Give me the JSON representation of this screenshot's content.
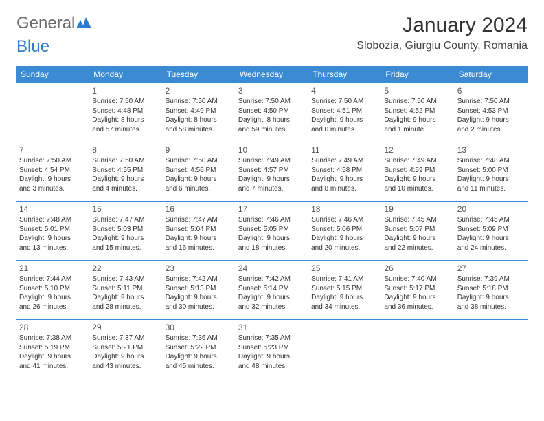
{
  "brand": {
    "part1": "General",
    "part2": "Blue"
  },
  "title": "January 2024",
  "location": "Slobozia, Giurgiu County, Romania",
  "colors": {
    "header_bg": "#3b8bd4",
    "header_text": "#ffffff",
    "border": "#3b8bd4",
    "brand_gray": "#6b6b6b",
    "brand_blue": "#2e7cd1"
  },
  "days_of_week": [
    "Sunday",
    "Monday",
    "Tuesday",
    "Wednesday",
    "Thursday",
    "Friday",
    "Saturday"
  ],
  "weeks": [
    [
      null,
      {
        "n": "1",
        "sunrise": "Sunrise: 7:50 AM",
        "sunset": "Sunset: 4:48 PM",
        "day1": "Daylight: 8 hours",
        "day2": "and 57 minutes."
      },
      {
        "n": "2",
        "sunrise": "Sunrise: 7:50 AM",
        "sunset": "Sunset: 4:49 PM",
        "day1": "Daylight: 8 hours",
        "day2": "and 58 minutes."
      },
      {
        "n": "3",
        "sunrise": "Sunrise: 7:50 AM",
        "sunset": "Sunset: 4:50 PM",
        "day1": "Daylight: 8 hours",
        "day2": "and 59 minutes."
      },
      {
        "n": "4",
        "sunrise": "Sunrise: 7:50 AM",
        "sunset": "Sunset: 4:51 PM",
        "day1": "Daylight: 9 hours",
        "day2": "and 0 minutes."
      },
      {
        "n": "5",
        "sunrise": "Sunrise: 7:50 AM",
        "sunset": "Sunset: 4:52 PM",
        "day1": "Daylight: 9 hours",
        "day2": "and 1 minute."
      },
      {
        "n": "6",
        "sunrise": "Sunrise: 7:50 AM",
        "sunset": "Sunset: 4:53 PM",
        "day1": "Daylight: 9 hours",
        "day2": "and 2 minutes."
      }
    ],
    [
      {
        "n": "7",
        "sunrise": "Sunrise: 7:50 AM",
        "sunset": "Sunset: 4:54 PM",
        "day1": "Daylight: 9 hours",
        "day2": "and 3 minutes."
      },
      {
        "n": "8",
        "sunrise": "Sunrise: 7:50 AM",
        "sunset": "Sunset: 4:55 PM",
        "day1": "Daylight: 9 hours",
        "day2": "and 4 minutes."
      },
      {
        "n": "9",
        "sunrise": "Sunrise: 7:50 AM",
        "sunset": "Sunset: 4:56 PM",
        "day1": "Daylight: 9 hours",
        "day2": "and 6 minutes."
      },
      {
        "n": "10",
        "sunrise": "Sunrise: 7:49 AM",
        "sunset": "Sunset: 4:57 PM",
        "day1": "Daylight: 9 hours",
        "day2": "and 7 minutes."
      },
      {
        "n": "11",
        "sunrise": "Sunrise: 7:49 AM",
        "sunset": "Sunset: 4:58 PM",
        "day1": "Daylight: 9 hours",
        "day2": "and 8 minutes."
      },
      {
        "n": "12",
        "sunrise": "Sunrise: 7:49 AM",
        "sunset": "Sunset: 4:59 PM",
        "day1": "Daylight: 9 hours",
        "day2": "and 10 minutes."
      },
      {
        "n": "13",
        "sunrise": "Sunrise: 7:48 AM",
        "sunset": "Sunset: 5:00 PM",
        "day1": "Daylight: 9 hours",
        "day2": "and 11 minutes."
      }
    ],
    [
      {
        "n": "14",
        "sunrise": "Sunrise: 7:48 AM",
        "sunset": "Sunset: 5:01 PM",
        "day1": "Daylight: 9 hours",
        "day2": "and 13 minutes."
      },
      {
        "n": "15",
        "sunrise": "Sunrise: 7:47 AM",
        "sunset": "Sunset: 5:03 PM",
        "day1": "Daylight: 9 hours",
        "day2": "and 15 minutes."
      },
      {
        "n": "16",
        "sunrise": "Sunrise: 7:47 AM",
        "sunset": "Sunset: 5:04 PM",
        "day1": "Daylight: 9 hours",
        "day2": "and 16 minutes."
      },
      {
        "n": "17",
        "sunrise": "Sunrise: 7:46 AM",
        "sunset": "Sunset: 5:05 PM",
        "day1": "Daylight: 9 hours",
        "day2": "and 18 minutes."
      },
      {
        "n": "18",
        "sunrise": "Sunrise: 7:46 AM",
        "sunset": "Sunset: 5:06 PM",
        "day1": "Daylight: 9 hours",
        "day2": "and 20 minutes."
      },
      {
        "n": "19",
        "sunrise": "Sunrise: 7:45 AM",
        "sunset": "Sunset: 5:07 PM",
        "day1": "Daylight: 9 hours",
        "day2": "and 22 minutes."
      },
      {
        "n": "20",
        "sunrise": "Sunrise: 7:45 AM",
        "sunset": "Sunset: 5:09 PM",
        "day1": "Daylight: 9 hours",
        "day2": "and 24 minutes."
      }
    ],
    [
      {
        "n": "21",
        "sunrise": "Sunrise: 7:44 AM",
        "sunset": "Sunset: 5:10 PM",
        "day1": "Daylight: 9 hours",
        "day2": "and 26 minutes."
      },
      {
        "n": "22",
        "sunrise": "Sunrise: 7:43 AM",
        "sunset": "Sunset: 5:11 PM",
        "day1": "Daylight: 9 hours",
        "day2": "and 28 minutes."
      },
      {
        "n": "23",
        "sunrise": "Sunrise: 7:42 AM",
        "sunset": "Sunset: 5:13 PM",
        "day1": "Daylight: 9 hours",
        "day2": "and 30 minutes."
      },
      {
        "n": "24",
        "sunrise": "Sunrise: 7:42 AM",
        "sunset": "Sunset: 5:14 PM",
        "day1": "Daylight: 9 hours",
        "day2": "and 32 minutes."
      },
      {
        "n": "25",
        "sunrise": "Sunrise: 7:41 AM",
        "sunset": "Sunset: 5:15 PM",
        "day1": "Daylight: 9 hours",
        "day2": "and 34 minutes."
      },
      {
        "n": "26",
        "sunrise": "Sunrise: 7:40 AM",
        "sunset": "Sunset: 5:17 PM",
        "day1": "Daylight: 9 hours",
        "day2": "and 36 minutes."
      },
      {
        "n": "27",
        "sunrise": "Sunrise: 7:39 AM",
        "sunset": "Sunset: 5:18 PM",
        "day1": "Daylight: 9 hours",
        "day2": "and 38 minutes."
      }
    ],
    [
      {
        "n": "28",
        "sunrise": "Sunrise: 7:38 AM",
        "sunset": "Sunset: 5:19 PM",
        "day1": "Daylight: 9 hours",
        "day2": "and 41 minutes."
      },
      {
        "n": "29",
        "sunrise": "Sunrise: 7:37 AM",
        "sunset": "Sunset: 5:21 PM",
        "day1": "Daylight: 9 hours",
        "day2": "and 43 minutes."
      },
      {
        "n": "30",
        "sunrise": "Sunrise: 7:36 AM",
        "sunset": "Sunset: 5:22 PM",
        "day1": "Daylight: 9 hours",
        "day2": "and 45 minutes."
      },
      {
        "n": "31",
        "sunrise": "Sunrise: 7:35 AM",
        "sunset": "Sunset: 5:23 PM",
        "day1": "Daylight: 9 hours",
        "day2": "and 48 minutes."
      },
      null,
      null,
      null
    ]
  ]
}
